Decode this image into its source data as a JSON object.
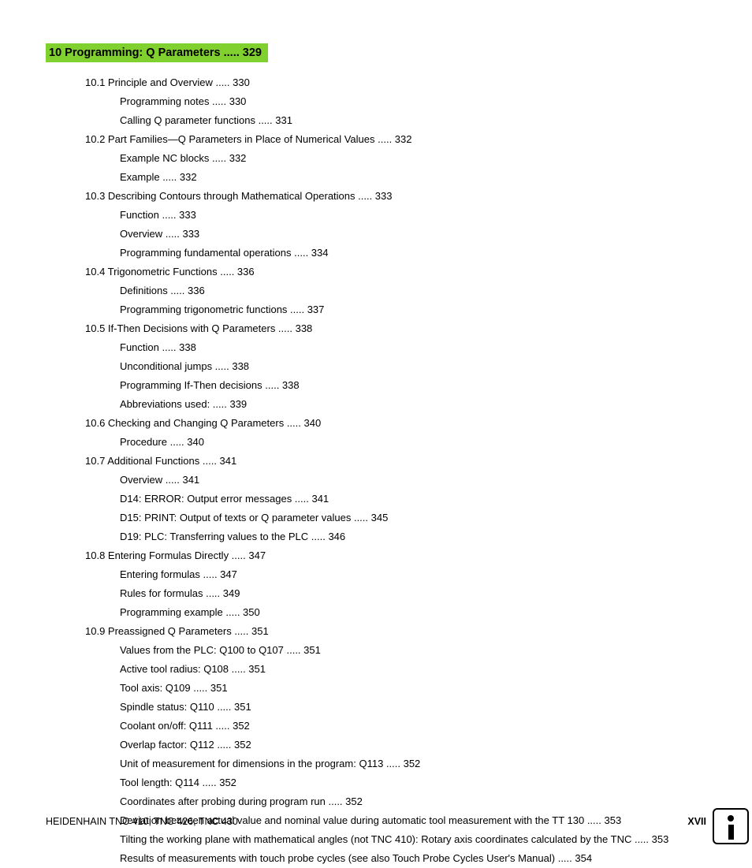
{
  "colors": {
    "highlight_bg": "#80d030",
    "text": "#000000",
    "background": "#ffffff"
  },
  "typography": {
    "body_fontsize_pt": 10,
    "heading_fontsize_pt": 11,
    "heading_weight": "bold",
    "font_family": "Arial"
  },
  "chapter": {
    "heading": "10 Programming: Q Parameters ..... 329"
  },
  "sections": [
    {
      "title": "10.1 Principle and Overview ..... 330",
      "items": [
        "Programming notes ..... 330",
        "Calling Q parameter functions ..... 331"
      ]
    },
    {
      "title": "10.2 Part Families—Q Parameters in Place of Numerical Values ..... 332",
      "items": [
        "Example NC blocks ..... 332",
        "Example ..... 332"
      ]
    },
    {
      "title": "10.3 Describing Contours through Mathematical Operations ..... 333",
      "items": [
        "Function ..... 333",
        "Overview ..... 333",
        "Programming fundamental operations ..... 334"
      ]
    },
    {
      "title": "10.4 Trigonometric Functions ..... 336",
      "items": [
        "Definitions ..... 336",
        "Programming trigonometric functions ..... 337"
      ]
    },
    {
      "title": "10.5 If-Then Decisions with Q Parameters ..... 338",
      "items": [
        "Function ..... 338",
        "Unconditional jumps ..... 338",
        "Programming If-Then decisions ..... 338",
        "Abbreviations used: ..... 339"
      ]
    },
    {
      "title": "10.6 Checking and Changing Q Parameters ..... 340",
      "items": [
        "Procedure ..... 340"
      ]
    },
    {
      "title": "10.7  Additional Functions ..... 341",
      "items": [
        "Overview ..... 341",
        "D14: ERROR: Output error messages ..... 341",
        "D15: PRINT: Output of texts or Q parameter values ..... 345",
        "D19: PLC: Transferring values to the PLC ..... 346"
      ]
    },
    {
      "title": "10.8  Entering Formulas Directly ..... 347",
      "items": [
        "Entering formulas ..... 347",
        "Rules for formulas ..... 349",
        "Programming example ..... 350"
      ]
    },
    {
      "title": "10.9 Preassigned Q Parameters ..... 351",
      "items": [
        "Values from the PLC: Q100 to Q107 ..... 351",
        "Active tool radius: Q108 ..... 351",
        "Tool axis: Q109 ..... 351",
        "Spindle status: Q110 ..... 351",
        "Coolant on/off: Q111 ..... 352",
        "Overlap factor: Q112 ..... 352",
        "Unit of measurement for dimensions in the program: Q113 ..... 352",
        "Tool length: Q114 ..... 352",
        "Coordinates after probing during program run ..... 352",
        "Deviation between actual value and nominal value during automatic tool measurement with the TT 130 ..... 353",
        "Tilting the working plane with mathematical angles (not TNC 410): Rotary axis coordinates calculated by the TNC ..... 353",
        "Results of measurements with touch probe cycles (see also Touch Probe Cycles User's Manual) ..... 354"
      ]
    }
  ],
  "footer": {
    "left": "HEIDENHAIN TNC 410, TNC 426, TNC 430",
    "page": "XVII"
  }
}
